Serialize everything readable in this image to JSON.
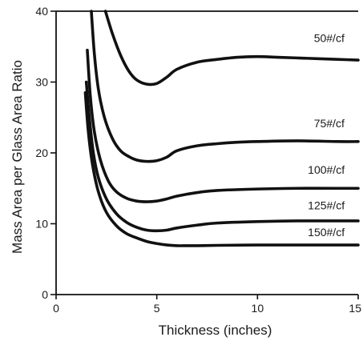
{
  "chart_data": {
    "type": "line",
    "title": "",
    "xlabel": "Thickness (inches)",
    "ylabel": "Mass Area per Glass Area Ratio",
    "xlim": [
      0,
      15
    ],
    "ylim": [
      0,
      40
    ],
    "xticks": [
      {
        "value": 0,
        "label": "0"
      },
      {
        "value": 5,
        "label": "5"
      },
      {
        "value": 10,
        "label": "10"
      },
      {
        "value": 15,
        "label": "15"
      }
    ],
    "yticks": [
      {
        "value": 0,
        "label": "0"
      },
      {
        "value": 10,
        "label": "10"
      },
      {
        "value": 20,
        "label": "20"
      },
      {
        "value": 30,
        "label": "30"
      },
      {
        "value": 40,
        "label": "40"
      }
    ],
    "grid": false,
    "legend": "none",
    "series": [
      {
        "name": "50#/cf",
        "x": [
          2.45,
          2.8,
          3.2,
          3.6,
          4.0,
          4.5,
          5.0,
          5.5,
          6.0,
          7.0,
          8.0,
          9.0,
          10.0,
          11.0,
          12.0,
          13.0,
          14.0,
          15.0
        ],
        "y": [
          40,
          36.8,
          33.8,
          31.6,
          30.3,
          29.7,
          29.8,
          30.7,
          31.8,
          32.8,
          33.2,
          33.5,
          33.6,
          33.5,
          33.4,
          33.3,
          33.2,
          33.1
        ]
      },
      {
        "name": "75#/cf",
        "x": [
          1.75,
          1.9,
          2.1,
          2.4,
          2.8,
          3.2,
          3.6,
          4.0,
          4.5,
          5.0,
          5.5,
          6.0,
          7.0,
          8.0,
          9.0,
          10.0,
          12.0,
          14.0,
          15.0
        ],
        "y": [
          40,
          34.0,
          29.0,
          25.0,
          22.0,
          20.3,
          19.5,
          19.0,
          18.8,
          18.9,
          19.4,
          20.3,
          21.0,
          21.3,
          21.5,
          21.6,
          21.7,
          21.6,
          21.6
        ]
      },
      {
        "name": "100#/cf",
        "x": [
          1.55,
          1.7,
          1.9,
          2.2,
          2.6,
          3.0,
          3.5,
          4.0,
          4.5,
          5.0,
          5.5,
          6.0,
          7.0,
          8.0,
          10.0,
          12.0,
          14.0,
          15.0
        ],
        "y": [
          34.5,
          28.0,
          23.0,
          19.0,
          16.0,
          14.5,
          13.6,
          13.2,
          13.1,
          13.2,
          13.5,
          13.9,
          14.4,
          14.7,
          14.9,
          15.0,
          15.0,
          15.0
        ]
      },
      {
        "name": "125#/cf",
        "x": [
          1.5,
          1.65,
          1.85,
          2.1,
          2.5,
          3.0,
          3.5,
          4.0,
          4.5,
          5.0,
          5.5,
          6.0,
          7.0,
          8.0,
          10.0,
          12.0,
          14.0,
          15.0
        ],
        "y": [
          30.0,
          25.0,
          20.0,
          16.5,
          13.5,
          11.4,
          10.2,
          9.5,
          9.1,
          9.0,
          9.1,
          9.4,
          9.8,
          10.1,
          10.3,
          10.4,
          10.4,
          10.4
        ]
      },
      {
        "name": "150#/cf",
        "x": [
          1.45,
          1.6,
          1.8,
          2.1,
          2.5,
          3.0,
          3.5,
          4.0,
          4.5,
          5.0,
          5.5,
          6.0,
          6.5,
          7.0,
          8.0,
          10.0,
          12.0,
          14.0,
          15.0
        ],
        "y": [
          28.5,
          23.0,
          18.5,
          14.5,
          11.6,
          9.7,
          8.6,
          8.0,
          7.5,
          7.2,
          7.0,
          6.9,
          6.9,
          6.9,
          6.95,
          7.0,
          7.0,
          7.0,
          7.0
        ]
      }
    ],
    "curve_labels": [
      {
        "text": "50#/cf",
        "x": 12.8,
        "y": 36.2
      },
      {
        "text": "75#/cf",
        "x": 12.8,
        "y": 24.2
      },
      {
        "text": "100#/cf",
        "x": 12.5,
        "y": 17.6
      },
      {
        "text": "125#/cf",
        "x": 12.5,
        "y": 12.6
      },
      {
        "text": "150#/cf",
        "x": 12.5,
        "y": 8.8
      }
    ]
  }
}
